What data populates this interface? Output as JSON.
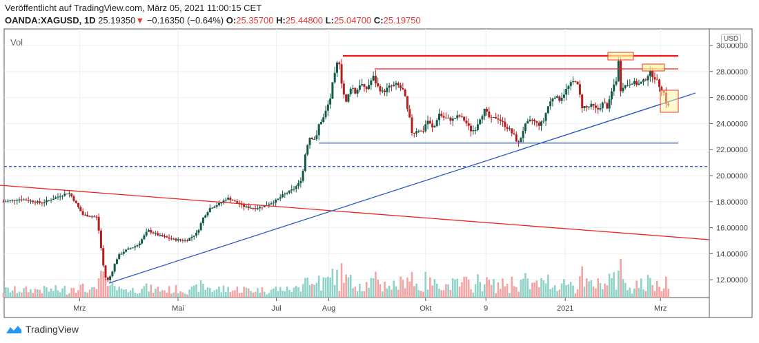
{
  "header": {
    "published": "Veröffentlicht auf TradingView.com, März 05, 2021 11:00:15 CET",
    "symbol": "OANDA:XAGUSD, 1D",
    "last": "25.19350",
    "change": "−0.16350 (−0.64%)",
    "o_label": "O:",
    "o": "25.35700",
    "h_label": "H:",
    "h": "25.44800",
    "l_label": "L:",
    "l": "25.04700",
    "c_label": "C:",
    "c": "25.19750"
  },
  "vol_label": "Vol",
  "currency": "USD",
  "brand": "TradingView",
  "colors": {
    "up": "#145a4a",
    "down": "#b71c1c",
    "vol_up": "#8fd3c8",
    "vol_down": "#f4a3a3",
    "trend_red": "#f21f1f",
    "trend_blue": "#2a5cc2",
    "highlight": "#fff59d"
  },
  "chart_data": {
    "type": "candlestick",
    "title": "OANDA:XAGUSD, 1D",
    "ylim": [
      10.8,
      31
    ],
    "y_ticks": [
      "30.00000",
      "28.00000",
      "26.00000",
      "24.00000",
      "22.00000",
      "20.00000",
      "18.00000",
      "16.00000",
      "14.00000",
      "12.00000"
    ],
    "y_tick_values": [
      30,
      28,
      26,
      24,
      22,
      20,
      18,
      16,
      14,
      12
    ],
    "x_unit": "days since 2020-01-13",
    "x_ticks": [
      {
        "label": "Mrz",
        "day": 48
      },
      {
        "label": "Mai",
        "day": 110
      },
      {
        "label": "Jul",
        "day": 172
      },
      {
        "label": "Aug",
        "day": 205
      },
      {
        "label": "Okt",
        "day": 266
      },
      {
        "label": "9",
        "day": 304
      },
      {
        "label": "2021",
        "day": 354
      },
      {
        "label": "Mrz",
        "day": 414
      }
    ],
    "close_path": [
      [
        0,
        18.0
      ],
      [
        11,
        18.2
      ],
      [
        24,
        17.9
      ],
      [
        41,
        18.7
      ],
      [
        43,
        18.4
      ],
      [
        50,
        17.0
      ],
      [
        59,
        16.8
      ],
      [
        63,
        13.0
      ],
      [
        65,
        11.8
      ],
      [
        67,
        12.2
      ],
      [
        72,
        13.8
      ],
      [
        76,
        14.2
      ],
      [
        85,
        14.7
      ],
      [
        91,
        15.8
      ],
      [
        98,
        15.4
      ],
      [
        107,
        15.1
      ],
      [
        115,
        15.0
      ],
      [
        122,
        15.6
      ],
      [
        126,
        16.8
      ],
      [
        130,
        17.5
      ],
      [
        137,
        17.9
      ],
      [
        141,
        18.3
      ],
      [
        146,
        18.0
      ],
      [
        152,
        17.6
      ],
      [
        159,
        17.5
      ],
      [
        165,
        17.7
      ],
      [
        172,
        18.1
      ],
      [
        176,
        18.5
      ],
      [
        183,
        19.0
      ],
      [
        187,
        19.5
      ],
      [
        189,
        20.5
      ],
      [
        191,
        22.5
      ],
      [
        193,
        23.0
      ],
      [
        197,
        22.8
      ],
      [
        199,
        24.0
      ],
      [
        202,
        24.5
      ],
      [
        206,
        26.0
      ],
      [
        209,
        27.8
      ],
      [
        211,
        29.0
      ],
      [
        212,
        28.5
      ],
      [
        214,
        26.5
      ],
      [
        216,
        25.5
      ],
      [
        219,
        27.0
      ],
      [
        222,
        26.3
      ],
      [
        225,
        27.2
      ],
      [
        228,
        26.5
      ],
      [
        233,
        27.6
      ],
      [
        236,
        26.8
      ],
      [
        239,
        26.4
      ],
      [
        243,
        26.8
      ],
      [
        248,
        27.0
      ],
      [
        252,
        26.5
      ],
      [
        255,
        24.5
      ],
      [
        258,
        23.2
      ],
      [
        261,
        23.6
      ],
      [
        264,
        23.3
      ],
      [
        267,
        24.3
      ],
      [
        271,
        23.5
      ],
      [
        274,
        24.8
      ],
      [
        278,
        24.4
      ],
      [
        283,
        24.3
      ],
      [
        287,
        24.6
      ],
      [
        291,
        24.2
      ],
      [
        294,
        23.5
      ],
      [
        297,
        23.5
      ],
      [
        300,
        24.5
      ],
      [
        303,
        25.0
      ],
      [
        307,
        24.3
      ],
      [
        311,
        24.5
      ],
      [
        315,
        24.0
      ],
      [
        319,
        23.5
      ],
      [
        322,
        23.0
      ],
      [
        325,
        22.4
      ],
      [
        327,
        23.5
      ],
      [
        330,
        24.0
      ],
      [
        333,
        24.3
      ],
      [
        337,
        23.9
      ],
      [
        340,
        24.1
      ],
      [
        343,
        25.3
      ],
      [
        347,
        26.2
      ],
      [
        350,
        25.8
      ],
      [
        353,
        26.3
      ],
      [
        357,
        27.0
      ],
      [
        361,
        27.4
      ],
      [
        364,
        25.5
      ],
      [
        367,
        25.2
      ],
      [
        371,
        25.4
      ],
      [
        374,
        25.0
      ],
      [
        378,
        25.6
      ],
      [
        381,
        25.2
      ],
      [
        384,
        26.8
      ],
      [
        386,
        27.3
      ],
      [
        388,
        29.0
      ],
      [
        389,
        27.0
      ],
      [
        392,
        26.9
      ],
      [
        396,
        27.2
      ],
      [
        400,
        27.0
      ],
      [
        404,
        27.3
      ],
      [
        407,
        28.0
      ],
      [
        410,
        27.6
      ],
      [
        413,
        27.0
      ],
      [
        416,
        26.4
      ],
      [
        418,
        25.5
      ],
      [
        420,
        25.2
      ]
    ],
    "drawings": {
      "resistance_upper": 29.2,
      "resistance_lower": 28.2,
      "support": 22.5,
      "dashed_level": 20.7
    }
  }
}
